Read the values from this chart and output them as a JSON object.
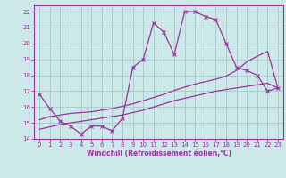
{
  "xlabel": "Windchill (Refroidissement éolien,°C)",
  "bg_color": "#cce8e8",
  "grid_color": "#aacccc",
  "line_color": "#993399",
  "spine_color": "#993399",
  "xlim": [
    -0.5,
    23.5
  ],
  "ylim": [
    14,
    22.4
  ],
  "xticks": [
    0,
    1,
    2,
    3,
    4,
    5,
    6,
    7,
    8,
    9,
    10,
    11,
    12,
    13,
    14,
    15,
    16,
    17,
    18,
    19,
    20,
    21,
    22,
    23
  ],
  "yticks": [
    14,
    15,
    16,
    17,
    18,
    19,
    20,
    21,
    22
  ],
  "series1_x": [
    0,
    1,
    2,
    3,
    4,
    5,
    6,
    7,
    8,
    9,
    10,
    11,
    12,
    13,
    14,
    15,
    16,
    17,
    18,
    19,
    20,
    21,
    22,
    23
  ],
  "series1_y": [
    16.8,
    15.9,
    15.1,
    14.8,
    14.3,
    14.8,
    14.8,
    14.5,
    15.3,
    18.5,
    19.0,
    21.3,
    20.7,
    19.3,
    22.0,
    22.0,
    21.7,
    21.5,
    20.0,
    18.5,
    18.3,
    18.0,
    17.0,
    17.2
  ],
  "series2_x": [
    0,
    1,
    2,
    3,
    4,
    5,
    6,
    7,
    8,
    9,
    10,
    11,
    12,
    13,
    14,
    15,
    16,
    17,
    18,
    19,
    20,
    21,
    22,
    23
  ],
  "series2_y": [
    15.2,
    15.4,
    15.5,
    15.6,
    15.65,
    15.7,
    15.8,
    15.9,
    16.05,
    16.2,
    16.4,
    16.6,
    16.8,
    17.05,
    17.25,
    17.45,
    17.6,
    17.75,
    17.95,
    18.3,
    18.85,
    19.2,
    19.5,
    17.2
  ],
  "series3_x": [
    0,
    1,
    2,
    3,
    4,
    5,
    6,
    7,
    8,
    9,
    10,
    11,
    12,
    13,
    14,
    15,
    16,
    17,
    18,
    19,
    20,
    21,
    22,
    23
  ],
  "series3_y": [
    14.6,
    14.75,
    14.9,
    15.0,
    15.1,
    15.2,
    15.3,
    15.4,
    15.5,
    15.65,
    15.8,
    16.0,
    16.2,
    16.4,
    16.55,
    16.7,
    16.85,
    17.0,
    17.1,
    17.2,
    17.3,
    17.4,
    17.5,
    17.2
  ],
  "xlabel_fontsize": 5.5,
  "tick_fontsize": 5,
  "linewidth": 0.9
}
